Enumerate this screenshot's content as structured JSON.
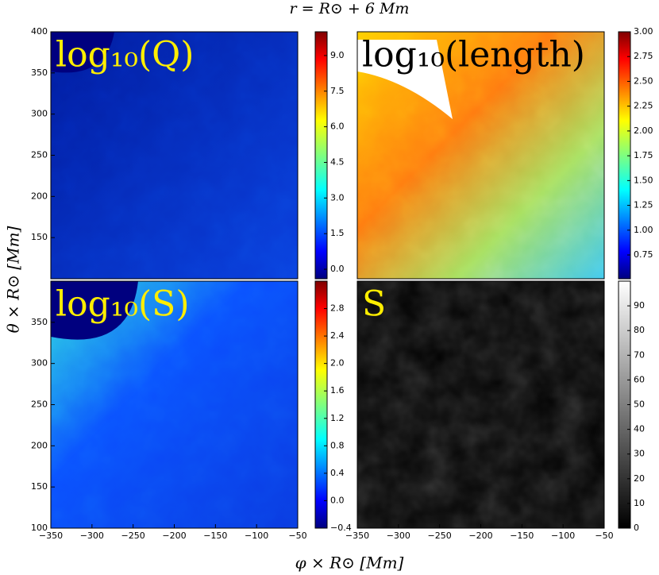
{
  "figure": {
    "title": "r = R⊙ + 6 Mm",
    "xlabel": "φ × R⊙ [Mm]",
    "ylabel": "θ × R⊙ [Mm]"
  },
  "chart_data": [
    {
      "type": "heatmap",
      "title": "log₁₀(Q)",
      "title_color": "#ffee00",
      "colormap": "jet",
      "xlim": [
        -350,
        -50
      ],
      "ylim": [
        100,
        400
      ],
      "yticks": [
        150,
        200,
        250,
        300,
        350,
        400
      ],
      "colorbar": {
        "lim": [
          -0.4,
          10
        ],
        "ticks": [
          {
            "value": 0,
            "label": "0.0"
          },
          1.5,
          {
            "value": 3,
            "label": "3.0"
          },
          4.5,
          {
            "value": 6,
            "label": "6.0"
          },
          7.5,
          {
            "value": 9,
            "label": "9.0"
          }
        ]
      }
    },
    {
      "type": "heatmap",
      "title": "log₁₀(length)",
      "title_color": "#000000",
      "colormap": "jet",
      "xlim": [
        -350,
        -50
      ],
      "ylim": [
        100,
        400
      ],
      "colorbar": {
        "lim": [
          0.51,
          3.0
        ],
        "ticks": [
          0.75,
          {
            "value": 1,
            "label": "1.00"
          },
          1.25,
          {
            "value": 1.5,
            "label": "1.50"
          },
          1.75,
          {
            "value": 2,
            "label": "2.00"
          },
          2.25,
          {
            "value": 2.5,
            "label": "2.50"
          },
          2.75,
          {
            "value": 3,
            "label": "3.00"
          }
        ]
      }
    },
    {
      "type": "heatmap",
      "title": "log₁₀(S)",
      "title_color": "#ffee00",
      "colormap": "jet",
      "xlim": [
        -350,
        -50
      ],
      "ylim": [
        100,
        400
      ],
      "yticks": [
        100,
        150,
        200,
        250,
        300,
        350
      ],
      "xticks": [
        {
          "value": -350,
          "label": "−350"
        },
        {
          "value": -300,
          "label": "−300"
        },
        {
          "value": -250,
          "label": "−250"
        },
        {
          "value": -200,
          "label": "−200"
        },
        {
          "value": -150,
          "label": "−150"
        },
        {
          "value": -100,
          "label": "−100"
        },
        {
          "value": -50,
          "label": "−50"
        }
      ],
      "colorbar": {
        "lim": [
          -0.4,
          3.2
        ],
        "ticks": [
          {
            "value": -0.4,
            "label": "−0.4"
          },
          {
            "value": 0,
            "label": "0.0"
          },
          0.4,
          0.8,
          1.2,
          1.6,
          {
            "value": 2,
            "label": "2.0"
          },
          2.4,
          2.8
        ]
      }
    },
    {
      "type": "heatmap",
      "title": "S",
      "title_color": "#ffee00",
      "colormap": "gray",
      "xlim": [
        -350,
        -50
      ],
      "ylim": [
        100,
        400
      ],
      "xticks": [
        {
          "value": -350,
          "label": "−350"
        },
        {
          "value": -300,
          "label": "−300"
        },
        {
          "value": -250,
          "label": "−250"
        },
        {
          "value": -200,
          "label": "−200"
        },
        {
          "value": -150,
          "label": "−150"
        },
        {
          "value": -100,
          "label": "−100"
        },
        {
          "value": -50,
          "label": "−50"
        }
      ],
      "colorbar": {
        "lim": [
          0,
          100
        ],
        "ticks": [
          0,
          10,
          20,
          30,
          40,
          50,
          60,
          70,
          80,
          90
        ]
      }
    }
  ]
}
